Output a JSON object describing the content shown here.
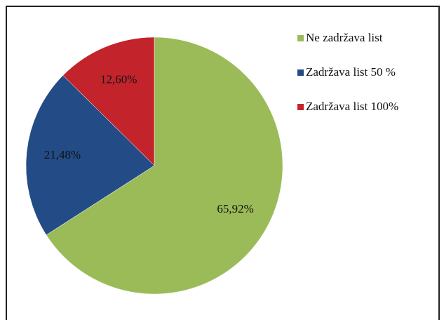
{
  "chart_data": {
    "type": "pie",
    "categories": [
      "Ne zadržava list",
      "Zadržava list 50 %",
      "Zadržava list 100%"
    ],
    "values": [
      65.92,
      21.48,
      12.6
    ],
    "value_labels": [
      "65,92%",
      "21,48%",
      "12,60%"
    ],
    "colors": [
      "#9bbb59",
      "#234b86",
      "#c3242b"
    ],
    "legend": "right"
  }
}
